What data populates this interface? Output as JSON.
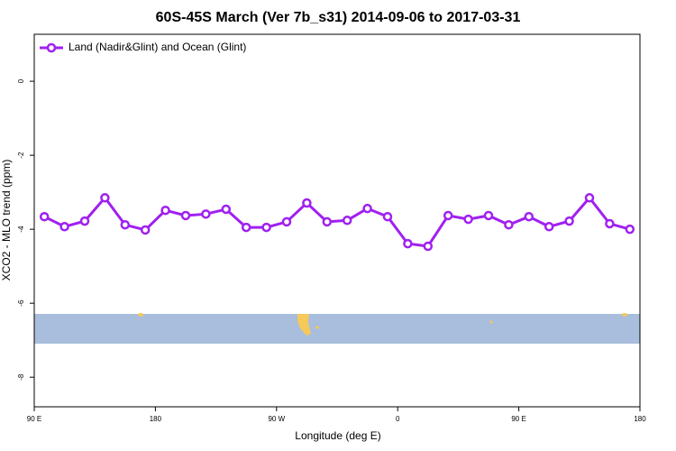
{
  "chart_data": {
    "type": "line",
    "title": "60S-45S March (Ver 7b_s31)   2014-09-06 to 2017-03-31",
    "xlabel": "Longitude (deg E)",
    "ylabel": "XCO2 - MLO trend (ppm)",
    "x": [
      97.5,
      112.5,
      127.5,
      142.5,
      157.5,
      172.5,
      187.5,
      202.5,
      217.5,
      232.5,
      247.5,
      262.5,
      277.5,
      292.5,
      307.5,
      322.5,
      337.5,
      352.5,
      367.5,
      382.5,
      397.5,
      412.5,
      427.5,
      442.5,
      457.5,
      472.5,
      487.5,
      502.5,
      517.5,
      532.5
    ],
    "series": [
      {
        "name": "Land (Nadir&Glint) and Ocean (Glint)",
        "color": "#a020f0",
        "values": [
          -3.66,
          -3.93,
          -3.78,
          -3.15,
          -3.88,
          -4.02,
          -3.49,
          -3.63,
          -3.59,
          -3.46,
          -3.95,
          -3.95,
          -3.8,
          -3.29,
          -3.8,
          -3.76,
          -3.44,
          -3.66,
          -4.39,
          -4.46,
          -3.63,
          -3.73,
          -3.63,
          -3.88,
          -3.66,
          -3.93,
          -3.78,
          -3.15,
          -3.85,
          -4.0
        ]
      }
    ],
    "xlim": [
      90,
      540
    ],
    "xticks": [
      {
        "value": 90,
        "label": "90 E"
      },
      180,
      {
        "value": 270,
        "label": "90 W"
      },
      {
        "value": 360,
        "label": "0"
      },
      {
        "value": 450,
        "label": "90 E"
      },
      {
        "value": 540,
        "label": "180"
      }
    ],
    "ylim": [
      -8.8,
      1.27
    ],
    "yticks": [
      0,
      -2,
      -4,
      -6,
      -8
    ],
    "legend": "top-left"
  }
}
